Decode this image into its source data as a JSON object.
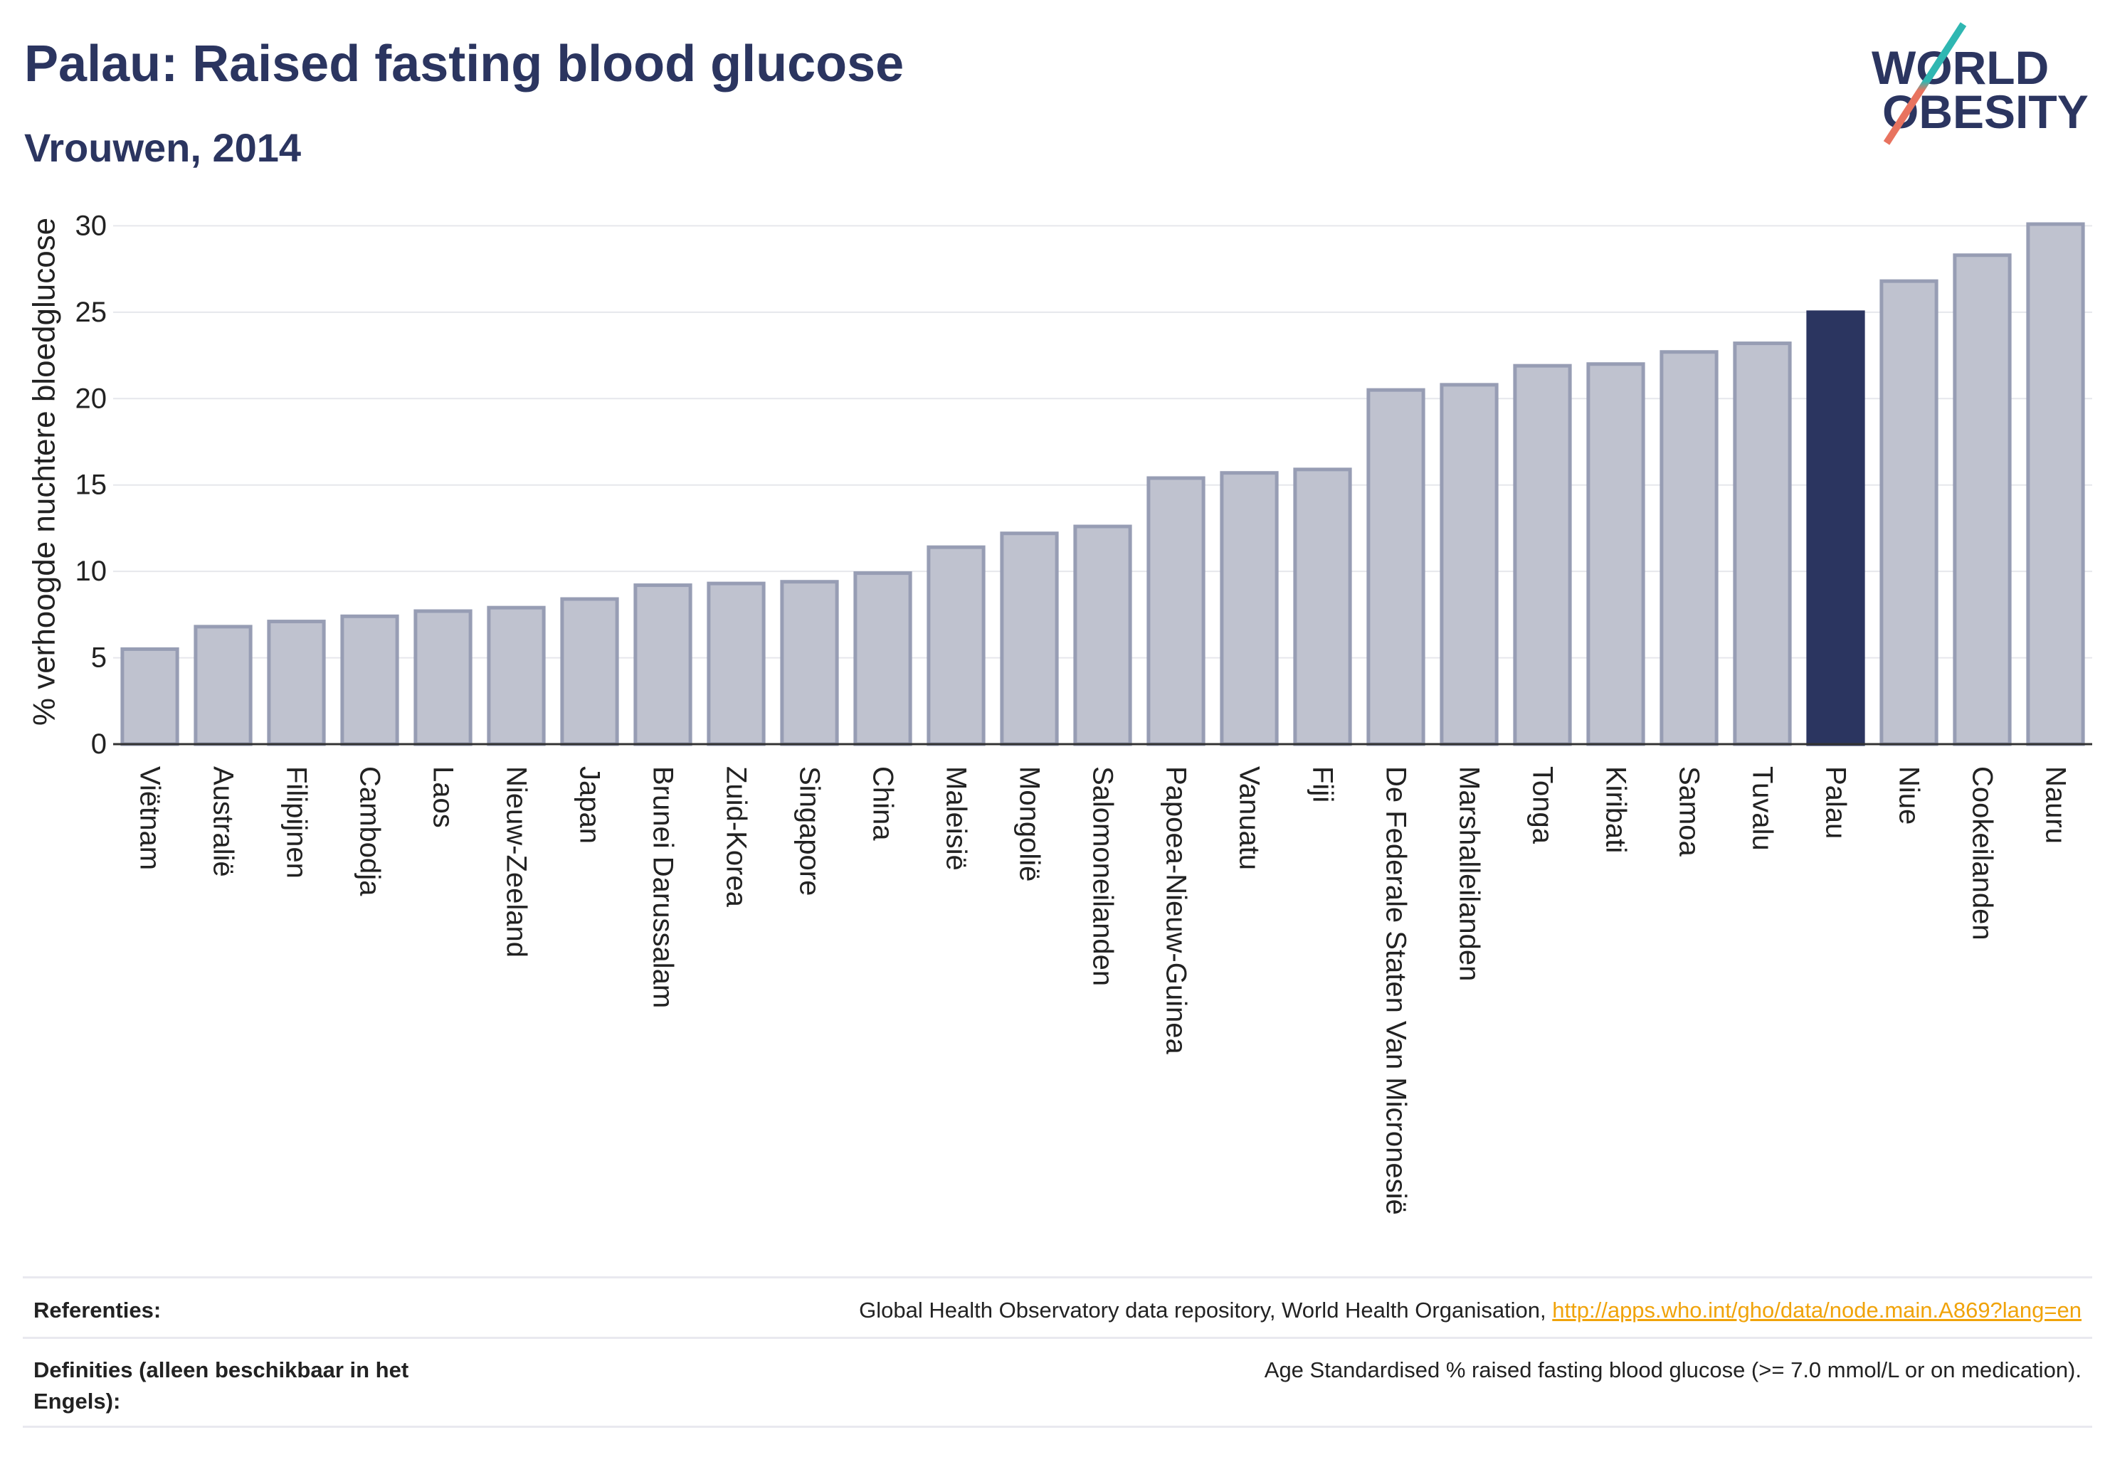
{
  "logo": {
    "line1": "WORLD",
    "line2": "OBESITY"
  },
  "colors": {
    "title": "#2b3560",
    "bar": "#bfc2cf",
    "bar_outline": "#979db4",
    "highlight": "#2b3560",
    "gridline": "#e6e7ec",
    "axis": "#333333",
    "text": "#222222",
    "link": "#f0a30a",
    "logo_teal": "#2fb7b2",
    "logo_coral": "#e8735f"
  },
  "chart_data": {
    "type": "bar",
    "title": "Palau: Raised fasting blood glucose",
    "subtitle": "Vrouwen, 2014",
    "ylabel": "% verhoogde nuchtere bloedglucose",
    "ylim": [
      0,
      31.5
    ],
    "yticks": [
      0,
      5,
      10,
      15,
      20,
      25,
      30
    ],
    "grid": true,
    "categories": [
      "Viëtnam",
      "Australië",
      "Filipijnen",
      "Cambodja",
      "Laos",
      "Nieuw-Zeeland",
      "Japan",
      "Brunei Darussalam",
      "Zuid-Korea",
      "Singapore",
      "China",
      "Maleisië",
      "Mongolië",
      "Salomoneilanden",
      "Papoea-Nieuw-Guinea",
      "Vanuatu",
      "Fiji",
      "De Federale Staten Van Micronesië",
      "Marshalleilanden",
      "Tonga",
      "Kiribati",
      "Samoa",
      "Tuvalu",
      "Palau",
      "Niue",
      "Cookeilanden",
      "Nauru"
    ],
    "values": [
      5.5,
      6.8,
      7.1,
      7.4,
      7.7,
      7.9,
      8.4,
      9.2,
      9.3,
      9.4,
      9.9,
      11.4,
      12.2,
      12.6,
      15.4,
      15.7,
      15.9,
      20.5,
      20.8,
      21.9,
      22.0,
      22.7,
      23.2,
      25.0,
      26.8,
      28.3,
      30.1
    ],
    "bar_colors": [
      "#bfc2cf",
      "#bfc2cf",
      "#bfc2cf",
      "#bfc2cf",
      "#bfc2cf",
      "#bfc2cf",
      "#bfc2cf",
      "#bfc2cf",
      "#bfc2cf",
      "#bfc2cf",
      "#bfc2cf",
      "#bfc2cf",
      "#bfc2cf",
      "#bfc2cf",
      "#bfc2cf",
      "#bfc2cf",
      "#bfc2cf",
      "#bfc2cf",
      "#bfc2cf",
      "#bfc2cf",
      "#bfc2cf",
      "#bfc2cf",
      "#bfc2cf",
      "#2b3560",
      "#bfc2cf",
      "#bfc2cf",
      "#bfc2cf"
    ]
  },
  "footer": {
    "references": {
      "label": "Referenties:",
      "source": "Global Health Observatory data repository, World Health Organisation,",
      "link": "http://apps.who.int/gho/data/node.main.A869?lang=en"
    },
    "definitions": {
      "label": "Definities (alleen beschikbaar in het Engels):",
      "text": "Age Standardised % raised fasting blood glucose (>= 7.0 mmol/L or on medication)."
    }
  }
}
